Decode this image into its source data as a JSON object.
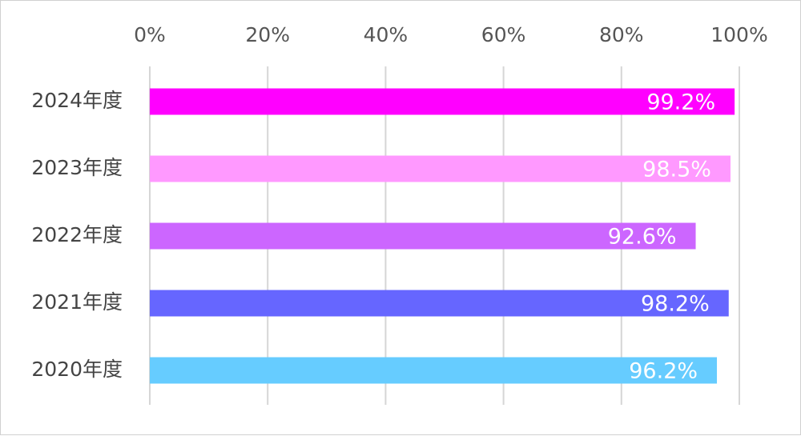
{
  "chart_data": {
    "type": "bar",
    "orientation": "horizontal",
    "title": "",
    "xlabel": "",
    "ylabel": "",
    "categories": [
      "2024年度",
      "2023年度",
      "2022年度",
      "2021年度",
      "2020年度"
    ],
    "values": [
      99.2,
      98.5,
      92.6,
      98.2,
      96.2
    ],
    "data_labels": [
      "99.2%",
      "98.5%",
      "92.6%",
      "98.2%",
      "96.2%"
    ],
    "colors": [
      "#ff00ff",
      "#ff99ff",
      "#cc66ff",
      "#6666ff",
      "#66ccff"
    ],
    "xlim": [
      0,
      100
    ],
    "x_ticks": [
      0,
      20,
      40,
      60,
      80,
      100
    ],
    "x_tick_labels": [
      "0%",
      "20%",
      "40%",
      "60%",
      "80%",
      "100%"
    ],
    "x_axis_position": "top",
    "grid": true,
    "legend": "none"
  }
}
